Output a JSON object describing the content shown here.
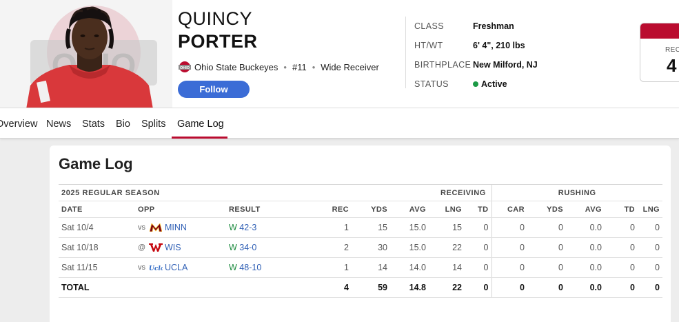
{
  "player": {
    "first_name": "QUINCY",
    "last_name": "PORTER",
    "team": "Ohio State Buckeyes",
    "number": "#11",
    "position": "Wide Receiver",
    "follow_label": "Follow"
  },
  "bio": [
    {
      "label": "CLASS",
      "value": "Freshman"
    },
    {
      "label": "HT/WT",
      "value": "6' 4\", 210 lbs"
    },
    {
      "label": "BIRTHPLACE",
      "value": "New Milford, NJ"
    },
    {
      "label": "STATUS",
      "value": "Active"
    }
  ],
  "stat_card": {
    "label": "REC",
    "value": "4"
  },
  "nav": {
    "tabs": [
      "Overview",
      "News",
      "Stats",
      "Bio",
      "Splits",
      "Game Log"
    ],
    "active": "Game Log"
  },
  "game_log": {
    "title": "Game Log",
    "season_label": "2025 REGULAR SEASON",
    "group_receiving": "RECEIVING",
    "group_rushing": "RUSHING",
    "columns": [
      "DATE",
      "OPP",
      "RESULT",
      "REC",
      "YDS",
      "AVG",
      "LNG",
      "TD",
      "CAR",
      "YDS",
      "AVG",
      "TD",
      "LNG"
    ],
    "rows": [
      {
        "date": "Sat 10/4",
        "prefix": "vs",
        "opp": "MINN",
        "logo": "minnesota-icon",
        "result": "W",
        "score": "42-3",
        "stats": [
          "1",
          "15",
          "15.0",
          "15",
          "0",
          "0",
          "0",
          "0.0",
          "0",
          "0"
        ]
      },
      {
        "date": "Sat 10/18",
        "prefix": "@",
        "opp": "WIS",
        "logo": "wisconsin-icon",
        "result": "W",
        "score": "34-0",
        "stats": [
          "2",
          "30",
          "15.0",
          "22",
          "0",
          "0",
          "0",
          "0.0",
          "0",
          "0"
        ]
      },
      {
        "date": "Sat 11/15",
        "prefix": "vs",
        "opp": "UCLA",
        "logo": "ucla-icon",
        "result": "W",
        "score": "48-10",
        "stats": [
          "1",
          "14",
          "14.0",
          "14",
          "0",
          "0",
          "0",
          "0.0",
          "0",
          "0"
        ]
      }
    ],
    "total": {
      "label": "TOTAL",
      "stats": [
        "4",
        "59",
        "14.8",
        "22",
        "0",
        "0",
        "0",
        "0.0",
        "0",
        "0"
      ]
    }
  },
  "colors": {
    "accent": "#ba0c2f",
    "follow_button": "#3b6cd6",
    "status_active": "#1c9a45",
    "link": "#2f5fb5"
  }
}
